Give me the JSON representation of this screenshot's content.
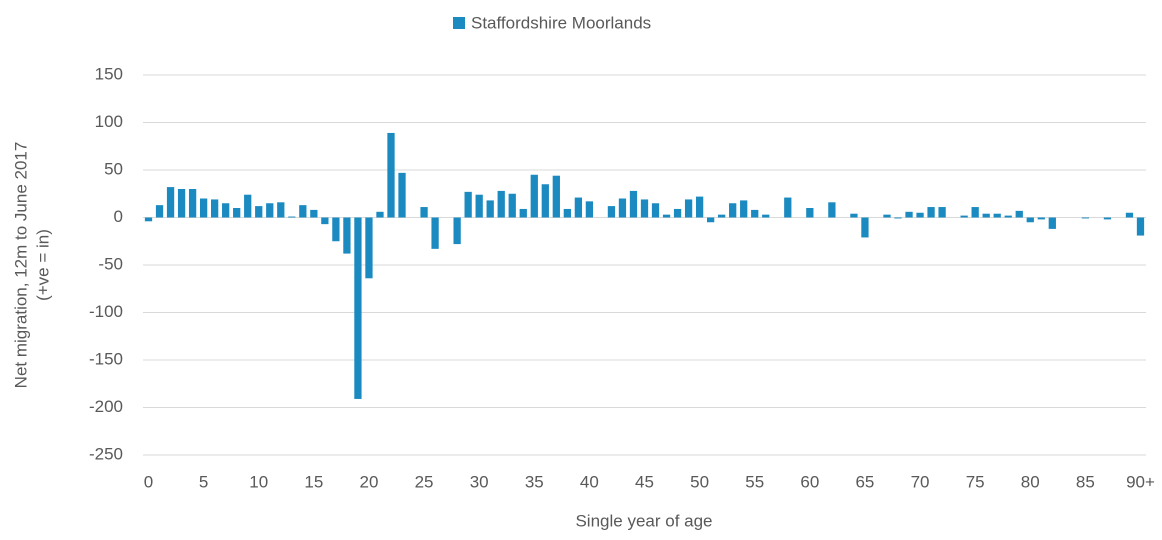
{
  "chart_data": {
    "type": "bar",
    "legend": "Staffordshire Moorlands",
    "color": "#1b8ac0",
    "x_label": "Single year of age",
    "y_label": [
      "Net migration, 12m to June 2017",
      "(+ve = in)"
    ],
    "categories": [
      "0",
      null,
      null,
      null,
      null,
      "5",
      null,
      null,
      null,
      null,
      "10",
      null,
      null,
      null,
      null,
      "15",
      null,
      null,
      null,
      null,
      "20",
      null,
      null,
      null,
      null,
      "25",
      null,
      null,
      null,
      null,
      "30",
      null,
      null,
      null,
      null,
      "35",
      null,
      null,
      null,
      null,
      "40",
      null,
      null,
      null,
      null,
      "45",
      null,
      null,
      null,
      null,
      "50",
      null,
      null,
      null,
      null,
      "55",
      null,
      null,
      null,
      null,
      "60",
      null,
      null,
      null,
      null,
      "65",
      null,
      null,
      null,
      null,
      "70",
      null,
      null,
      null,
      null,
      "75",
      null,
      null,
      null,
      null,
      "80",
      null,
      null,
      null,
      null,
      "85",
      null,
      null,
      null,
      null,
      "90+"
    ],
    "values": [
      -4,
      13,
      32,
      30,
      30,
      20,
      19,
      15,
      10,
      24,
      12,
      15,
      16,
      1,
      13,
      8,
      -7,
      -25,
      -38,
      -191,
      -64,
      6,
      89,
      47,
      0,
      11,
      -33,
      0,
      -28,
      27,
      24,
      18,
      28,
      25,
      9,
      45,
      35,
      44,
      9,
      21,
      17,
      0,
      12,
      20,
      28,
      19,
      15,
      3,
      9,
      19,
      22,
      -5,
      3,
      15,
      18,
      8,
      3,
      0,
      21,
      0,
      10,
      0,
      16,
      0,
      4,
      -21,
      0,
      3,
      -1,
      6,
      5,
      11,
      11,
      0,
      2,
      11,
      4,
      4,
      2,
      7,
      -5,
      -2,
      -12,
      0,
      0,
      -1,
      0,
      -2,
      0,
      5,
      -19
    ],
    "ylim": [
      -250,
      150
    ],
    "yticks": [
      -250,
      -200,
      -150,
      -100,
      -50,
      0,
      50,
      100,
      150
    ],
    "grid": true
  }
}
